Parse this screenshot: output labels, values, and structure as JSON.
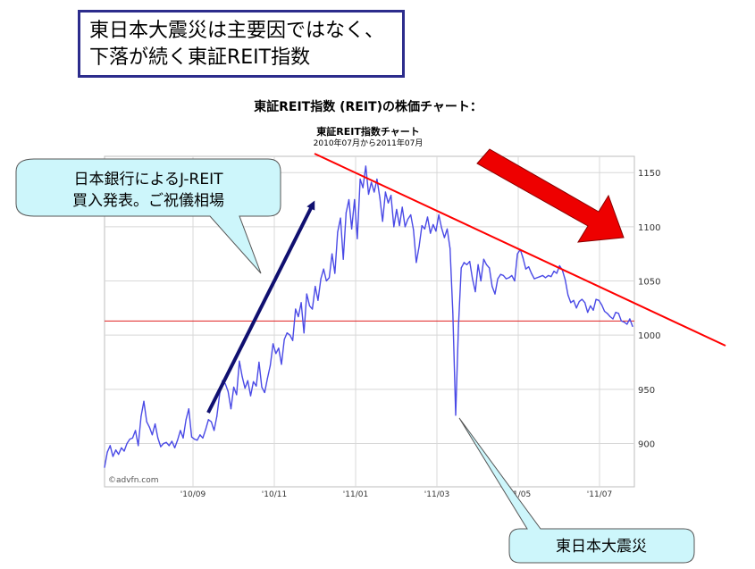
{
  "slide": {
    "headline": [
      "東日本大震災は主要因ではなく、",
      "下落が続く東証REIT指数"
    ],
    "callout_boj": [
      "日本銀行によるJ-REIT",
      "買入発表。ご祝儀相場"
    ],
    "callout_quake": "東日本大震災"
  },
  "chart_data": {
    "type": "line",
    "title": "東証REIT指数 (REIT)の株価チャート：",
    "subtitle": "東証REIT指数チャート",
    "period": "2010年07月から2011年07月",
    "watermark": "©advfn.com",
    "x_ticks": [
      "'10/09",
      "'10/11",
      "'11/01",
      "'11/03",
      "'11/05",
      "'11/07"
    ],
    "y_ticks": [
      900,
      950,
      1000,
      1050,
      1100,
      1150
    ],
    "ylim": [
      860,
      1165
    ],
    "grid": true,
    "series": [
      {
        "values": [
          878,
          892,
          898,
          888,
          894,
          890,
          896,
          893,
          900,
          904,
          905,
          912,
          898,
          925,
          939,
          920,
          915,
          908,
          918,
          905,
          897,
          900,
          901,
          898,
          902,
          896,
          903,
          912,
          905,
          922,
          932,
          906,
          904,
          903,
          908,
          905,
          913,
          922,
          920,
          912,
          925,
          946,
          958,
          955,
          948,
          932,
          952,
          945,
          976,
          962,
          951,
          958,
          944,
          957,
          953,
          975,
          952,
          947,
          960,
          972,
          992,
          983,
          988,
          973,
          996,
          1002,
          1000,
          995,
          1024,
          1017,
          1030,
          1002,
          1038,
          1027,
          1024,
          1045,
          1032,
          1052,
          1061,
          1050,
          1053,
          1075,
          1057,
          1095,
          1108,
          1070,
          1113,
          1125,
          1098,
          1125,
          1089,
          1144,
          1136,
          1156,
          1130,
          1141,
          1132,
          1144,
          1127,
          1105,
          1132,
          1122,
          1129,
          1100,
          1116,
          1101,
          1118,
          1100,
          1107,
          1111,
          1097,
          1067,
          1082,
          1101,
          1098,
          1109,
          1094,
          1102,
          1096,
          1111,
          1099,
          1090,
          1098,
          1080,
          1021,
          926,
          1008,
          1062,
          1067,
          1065,
          1068,
          1052,
          1040,
          1065,
          1050,
          1070,
          1065,
          1062,
          1045,
          1038,
          1052,
          1056,
          1055,
          1052,
          1053,
          1055,
          1050,
          1075,
          1079,
          1071,
          1061,
          1063,
          1057,
          1052,
          1053,
          1054,
          1055,
          1053,
          1055,
          1054,
          1059,
          1057,
          1064,
          1060,
          1051,
          1037,
          1030,
          1032,
          1025,
          1031,
          1033,
          1030,
          1021,
          1027,
          1023,
          1033,
          1032,
          1028,
          1022,
          1020,
          1017,
          1015,
          1021,
          1020,
          1013,
          1012,
          1010,
          1015,
          1008
        ]
      }
    ],
    "reference_level": 1013,
    "trendline": {
      "from_value": 1166,
      "to_value": 1029
    }
  },
  "colors": {
    "series": "#4a4ae6",
    "reference": "#e02020",
    "trendline": "#ff0000",
    "rise_arrow": "#101070",
    "drop_arrow": "#ee0000",
    "callout_fill": "#cdf6fb",
    "title_border": "#2c2c8c"
  }
}
